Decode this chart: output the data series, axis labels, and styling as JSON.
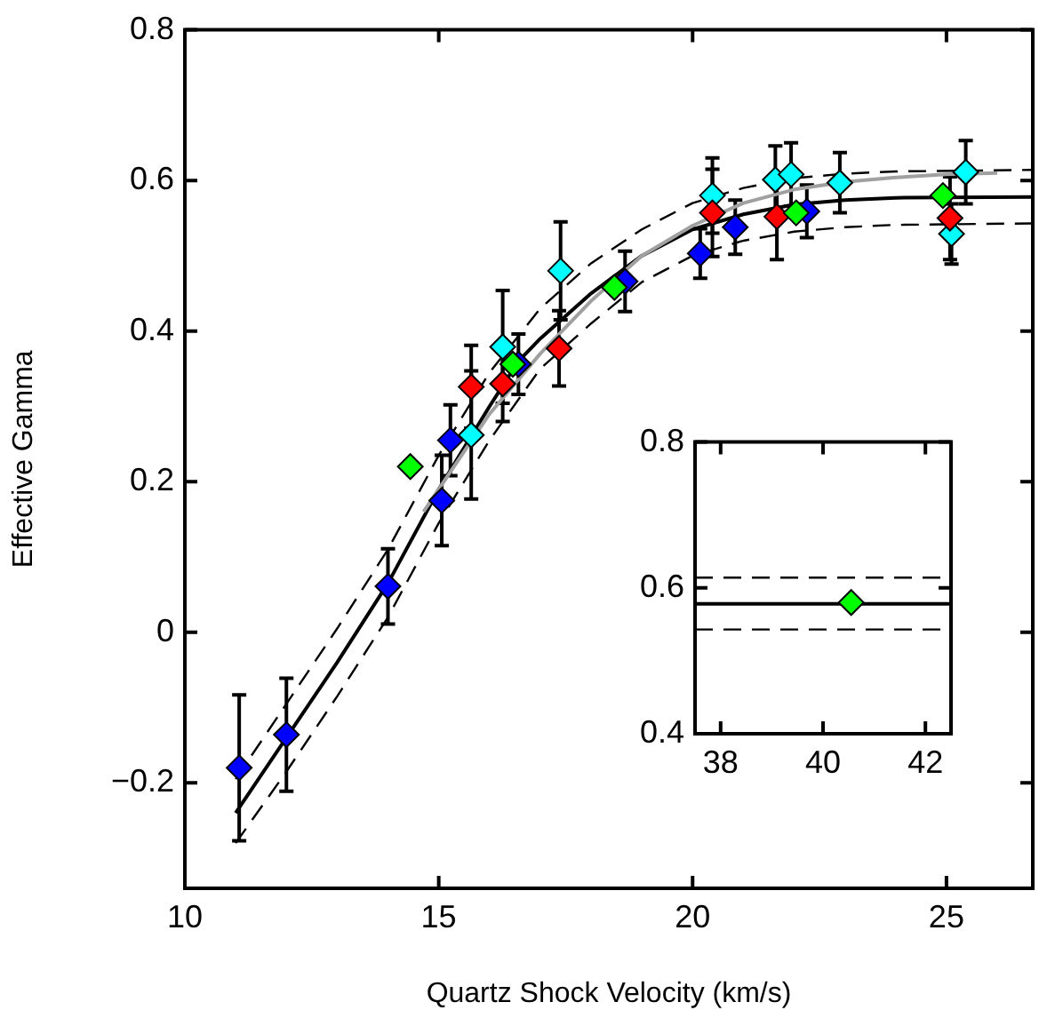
{
  "chart_data": [
    {
      "type": "scatter",
      "xlabel": "Quartz Shock Velocity (km/s)",
      "ylabel": "Effective Gamma",
      "xlim": [
        10,
        26.7
      ],
      "xticks": [
        10,
        15,
        20,
        25
      ],
      "ylim": [
        -0.34,
        0.8
      ],
      "yticks": [
        {
          "value": -0.2,
          "label": "−0.2"
        },
        0,
        0.2,
        0.4,
        0.6,
        0.8
      ],
      "grid": false,
      "legend": false,
      "series": [
        {
          "type": "line",
          "color": "#a0a0a0",
          "marker": "none",
          "line_style": "solid",
          "x": [
            14.7,
            16,
            17,
            18,
            19,
            20,
            21,
            22,
            23,
            24,
            25,
            26
          ],
          "values": [
            0.16,
            0.29,
            0.37,
            0.44,
            0.5,
            0.54,
            0.57,
            0.588,
            0.598,
            0.604,
            0.608,
            0.61
          ]
        },
        {
          "type": "line",
          "color": "#000000",
          "marker": "none",
          "line_style": "dashed",
          "x": [
            11,
            12,
            13,
            14,
            15,
            16,
            17,
            18,
            19,
            20,
            21,
            22,
            23,
            24,
            26.7
          ],
          "values": [
            -0.195,
            -0.095,
            0.005,
            0.11,
            0.235,
            0.345,
            0.43,
            0.49,
            0.535,
            0.57,
            0.59,
            0.603,
            0.609,
            0.612,
            0.614
          ]
        },
        {
          "type": "line",
          "color": "#000000",
          "marker": "none",
          "line_style": "dashed",
          "x": [
            11,
            12,
            13,
            14,
            15,
            16,
            17,
            18,
            19,
            20,
            21,
            22,
            23,
            24,
            26.7
          ],
          "values": [
            -0.28,
            -0.185,
            -0.085,
            0.02,
            0.145,
            0.255,
            0.35,
            0.41,
            0.465,
            0.5,
            0.52,
            0.532,
            0.538,
            0.541,
            0.543
          ]
        },
        {
          "type": "line",
          "color": "#000000",
          "marker": "none",
          "line_style": "solid",
          "x": [
            11,
            12,
            13,
            14,
            15,
            16,
            16.57,
            17,
            18,
            19,
            20,
            21,
            22,
            23,
            24,
            26.7
          ],
          "values": [
            -0.24,
            -0.14,
            -0.04,
            0.065,
            0.19,
            0.3,
            0.36,
            0.39,
            0.45,
            0.5,
            0.535,
            0.555,
            0.568,
            0.574,
            0.577,
            0.578
          ]
        },
        {
          "type": "scatter",
          "color": "#0000ff",
          "marker": "diamond",
          "x": [
            11.07,
            12.0,
            14.0,
            15.06,
            15.23,
            16.57,
            18.67,
            20.15,
            20.84,
            22.25
          ],
          "values": [
            -0.18,
            -0.136,
            0.061,
            0.175,
            0.255,
            0.356,
            0.466,
            0.503,
            0.538,
            0.559
          ],
          "errors": [
            0.097,
            0.075,
            0.05,
            0.06,
            0.047,
            0.04,
            0.04,
            0.033,
            0.036,
            0.035
          ]
        },
        {
          "type": "scatter",
          "color": "#00ffff",
          "marker": "diamond",
          "x": [
            15.64,
            16.26,
            17.4,
            20.39,
            21.63,
            21.94,
            22.9,
            25.38,
            25.1
          ],
          "values": [
            0.262,
            0.379,
            0.48,
            0.58,
            0.601,
            0.608,
            0.597,
            0.611,
            0.529
          ],
          "errors": [
            0.085,
            0.075,
            0.065,
            0.05,
            0.045,
            0.042,
            0.04,
            0.042,
            0.04
          ]
        },
        {
          "type": "scatter",
          "color": "#ff0000",
          "marker": "diamond",
          "x": [
            15.64,
            16.26,
            17.37,
            20.39,
            21.66,
            25.07
          ],
          "values": [
            0.326,
            0.33,
            0.377,
            0.557,
            0.552,
            0.55
          ],
          "errors": [
            0.055,
            0.05,
            0.05,
            0.058,
            0.057,
            0.055
          ]
        },
        {
          "type": "scatter",
          "color": "#00ff00",
          "marker": "diamond",
          "x": [
            14.44,
            16.46,
            18.46,
            22.04,
            24.93
          ],
          "values": [
            0.22,
            0.356,
            0.458,
            0.557,
            0.58
          ]
        }
      ]
    },
    {
      "type": "scatter",
      "xlim": [
        37.5,
        42.5
      ],
      "xticks": [
        38,
        40,
        42
      ],
      "ylim": [
        0.4,
        0.8
      ],
      "yticks": [
        0.4,
        0.6,
        0.8
      ],
      "grid": false,
      "legend": false,
      "ref_lines": [
        {
          "axis": "y",
          "value": 0.614,
          "color": "#000000",
          "line_style": "dashed"
        },
        {
          "axis": "y",
          "value": 0.543,
          "color": "#000000",
          "line_style": "dashed"
        },
        {
          "axis": "y",
          "value": 0.578,
          "color": "#000000",
          "line_style": "solid"
        }
      ],
      "series": [
        {
          "type": "scatter",
          "color": "#00ff00",
          "marker": "diamond",
          "x": [
            40.55
          ],
          "values": [
            0.58
          ]
        }
      ]
    }
  ]
}
